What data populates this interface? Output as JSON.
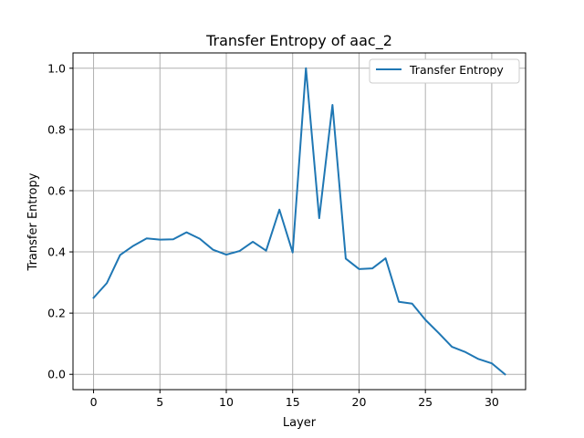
{
  "chart_data": {
    "type": "line",
    "title": "Transfer Entropy of aac_2",
    "xlabel": "Layer",
    "ylabel": "Transfer Entropy",
    "xlim": [
      -1.55,
      32.55
    ],
    "ylim": [
      -0.05,
      1.05
    ],
    "xticks": [
      0,
      5,
      10,
      15,
      20,
      25,
      30
    ],
    "yticks": [
      0.0,
      0.2,
      0.4,
      0.6,
      0.8,
      1.0
    ],
    "grid": true,
    "legend_position": "top-right",
    "series": [
      {
        "name": "Transfer Entropy",
        "color": "#1f77b4",
        "x": [
          0,
          1,
          2,
          3,
          4,
          5,
          6,
          7,
          8,
          9,
          10,
          11,
          12,
          13,
          14,
          15,
          16,
          17,
          18,
          19,
          20,
          21,
          22,
          23,
          24,
          25,
          26,
          27,
          28,
          29,
          30,
          31
        ],
        "y": [
          0.25,
          0.298,
          0.39,
          0.42,
          0.444,
          0.44,
          0.441,
          0.464,
          0.443,
          0.407,
          0.391,
          0.403,
          0.433,
          0.404,
          0.538,
          0.398,
          1.0,
          0.51,
          0.88,
          0.378,
          0.344,
          0.346,
          0.379,
          0.237,
          0.231,
          0.178,
          0.135,
          0.09,
          0.073,
          0.05,
          0.036,
          0.0
        ]
      }
    ]
  }
}
